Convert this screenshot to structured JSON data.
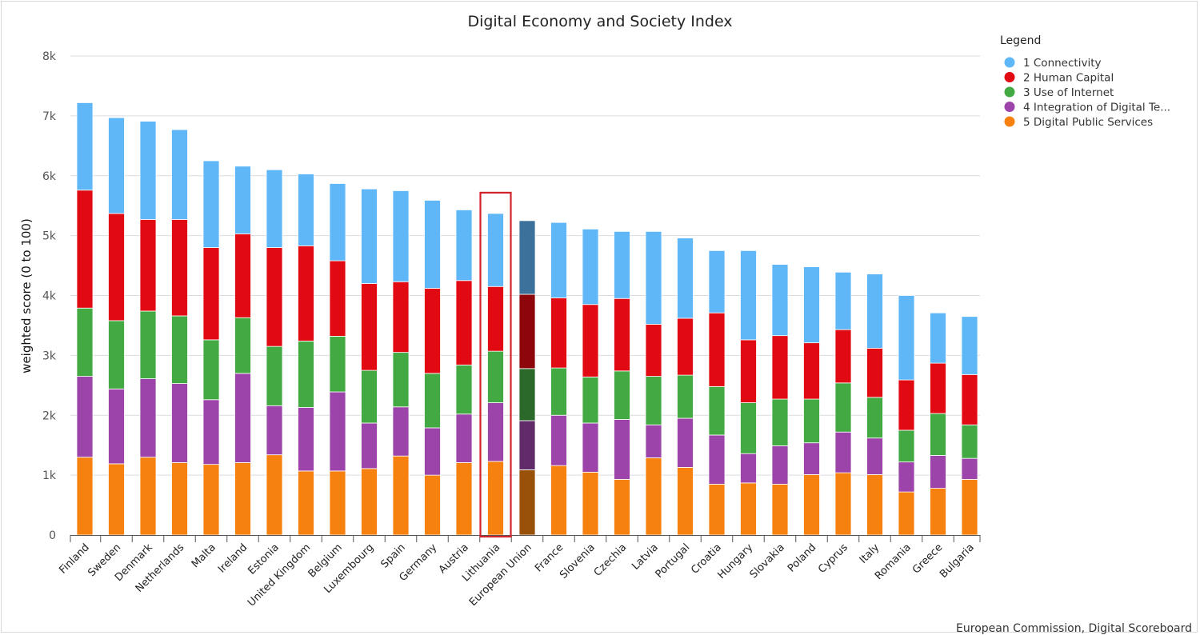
{
  "chart_data": {
    "type": "bar",
    "stacked": true,
    "title": "Digital Economy and Society Index",
    "ylabel": "weighted score (0 to 100)",
    "ylim": [
      0,
      8000
    ],
    "yticks": [
      "0",
      "1k",
      "2k",
      "3k",
      "4k",
      "5k",
      "6k",
      "7k",
      "8k"
    ],
    "grid": true,
    "legend_title": "Legend",
    "legend_position": "top-right",
    "highlighted_category": "Lithuania",
    "emphasized_category": "European Union",
    "categories": [
      "Finland",
      "Sweden",
      "Denmark",
      "Netherlands",
      "Malta",
      "Ireland",
      "Estonia",
      "United Kingdom",
      "Belgium",
      "Luxembourg",
      "Spain",
      "Germany",
      "Austria",
      "Lithuania",
      "European Union",
      "France",
      "Slovenia",
      "Czechia",
      "Latvia",
      "Portugal",
      "Croatia",
      "Hungary",
      "Slovakia",
      "Poland",
      "Cyprus",
      "Italy",
      "Romania",
      "Greece",
      "Bulgaria"
    ],
    "series": [
      {
        "name": "5 Digital Public Services",
        "color": "#f7810f",
        "values": [
          1300,
          1190,
          1300,
          1210,
          1180,
          1210,
          1340,
          1070,
          1070,
          1110,
          1320,
          1000,
          1210,
          1230,
          1090,
          1160,
          1050,
          930,
          1290,
          1130,
          850,
          870,
          850,
          1010,
          1040,
          1010,
          720,
          780,
          930
        ]
      },
      {
        "name": "4 Integration of Digital Te...",
        "color": "#9c44a9",
        "values": [
          1350,
          1250,
          1310,
          1320,
          1080,
          1490,
          820,
          1060,
          1320,
          760,
          820,
          790,
          810,
          980,
          820,
          840,
          820,
          1000,
          550,
          820,
          820,
          490,
          640,
          530,
          680,
          610,
          500,
          550,
          350
        ]
      },
      {
        "name": "3 Use of Internet",
        "color": "#43a942",
        "values": [
          1140,
          1140,
          1130,
          1130,
          1000,
          930,
          990,
          1110,
          930,
          880,
          910,
          910,
          820,
          860,
          870,
          790,
          770,
          810,
          810,
          720,
          810,
          850,
          780,
          730,
          820,
          680,
          530,
          700,
          560
        ]
      },
      {
        "name": "2 Human Capital",
        "color": "#e10a12",
        "values": [
          1970,
          1790,
          1530,
          1610,
          1540,
          1400,
          1650,
          1590,
          1260,
          1450,
          1180,
          1420,
          1410,
          1080,
          1240,
          1170,
          1210,
          1210,
          870,
          950,
          1230,
          1050,
          1060,
          940,
          890,
          820,
          840,
          840,
          840
        ]
      },
      {
        "name": "1 Connectivity",
        "color": "#5fb7f8",
        "values": [
          1460,
          1600,
          1640,
          1500,
          1450,
          1130,
          1300,
          1200,
          1290,
          1580,
          1520,
          1470,
          1180,
          1220,
          1230,
          1260,
          1260,
          1120,
          1550,
          1340,
          1040,
          1490,
          1190,
          1270,
          960,
          1240,
          1410,
          840,
          970
        ]
      }
    ],
    "credit": "European Commission, Digital Scoreboard"
  }
}
